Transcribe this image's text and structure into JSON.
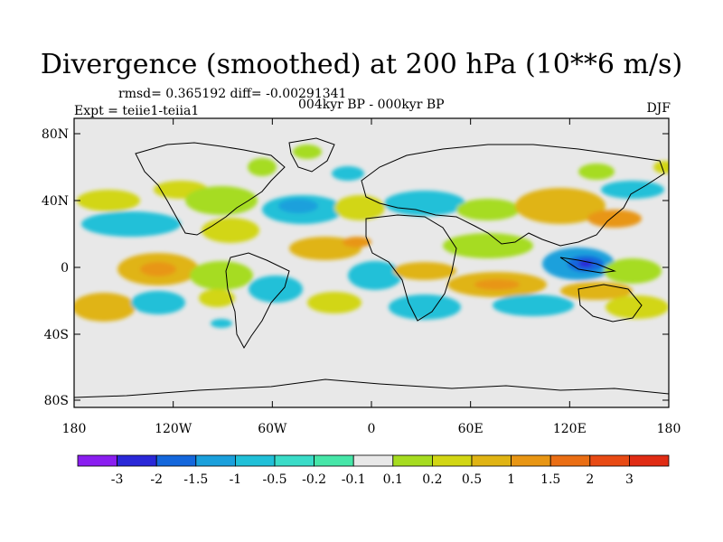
{
  "title": "Divergence (smoothed) at 200 hPa (10**6 m/s)",
  "subtitle_stats": "rmsd= 0.365192 diff= -0.00291341",
  "period": "004kyr BP - 000kyr BP",
  "experiment": "Expt = teiie1-teiia1",
  "season": "DJF",
  "map": {
    "projection": "cylindrical equidistant",
    "background_color": "#e8e8e8",
    "lat_ticks": [
      "80N",
      "40N",
      "0",
      "40S",
      "80S"
    ],
    "lon_ticks": [
      "180",
      "120W",
      "60W",
      "0",
      "60E",
      "120E",
      "180"
    ]
  },
  "colorbar": {
    "colors": [
      "#8a1ef0",
      "#2a28d8",
      "#1467dc",
      "#1aa0dc",
      "#20c0d8",
      "#3adcc8",
      "#46e6a8",
      "#e8e8e8",
      "#a6dc20",
      "#d2d614",
      "#e0b414",
      "#e89614",
      "#ea6e14",
      "#e84a14",
      "#e02c14"
    ],
    "labels": [
      "-3",
      "-2",
      "-1.5",
      "-1",
      "-0.5",
      "-0.2",
      "-0.1",
      "0.1",
      "0.2",
      "0.5",
      "1",
      "1.5",
      "2",
      "3"
    ]
  }
}
